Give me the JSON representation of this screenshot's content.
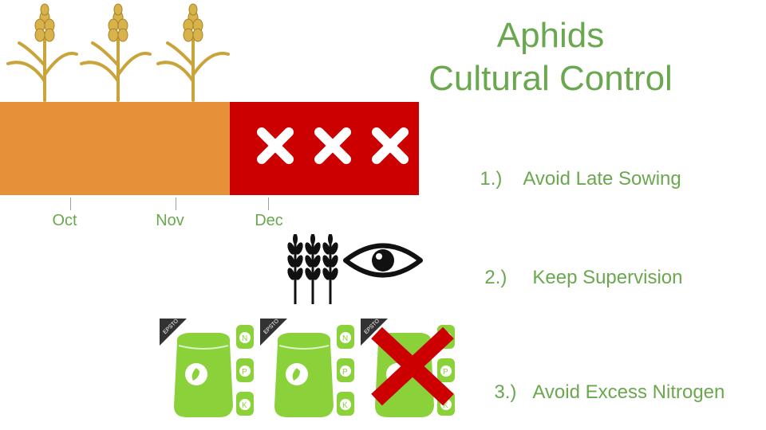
{
  "title": {
    "line1": "Aphids",
    "line2": "Cultural Control"
  },
  "timeline": {
    "months": [
      "Oct",
      "Nov",
      "Dec"
    ],
    "colors": {
      "good": "#e69138",
      "bad": "#cc0000"
    },
    "bad_markers": 3
  },
  "points": [
    {
      "num": "1.)",
      "text": "Avoid Late Sowing"
    },
    {
      "num": "2.)",
      "text": "Keep Supervision"
    },
    {
      "num": "3.)",
      "text": "Avoid Excess Nitrogen"
    }
  ],
  "icons": {
    "plants": "wheat-plant-icon",
    "monitor": "eye-icon",
    "fertilizer": "fertilizer-bag-icon",
    "forbidden": "red-x-icon"
  },
  "bag_label": "EPSTO",
  "bag_nutrients": [
    "N",
    "P",
    "K"
  ],
  "accent_color": "#6aa84f"
}
